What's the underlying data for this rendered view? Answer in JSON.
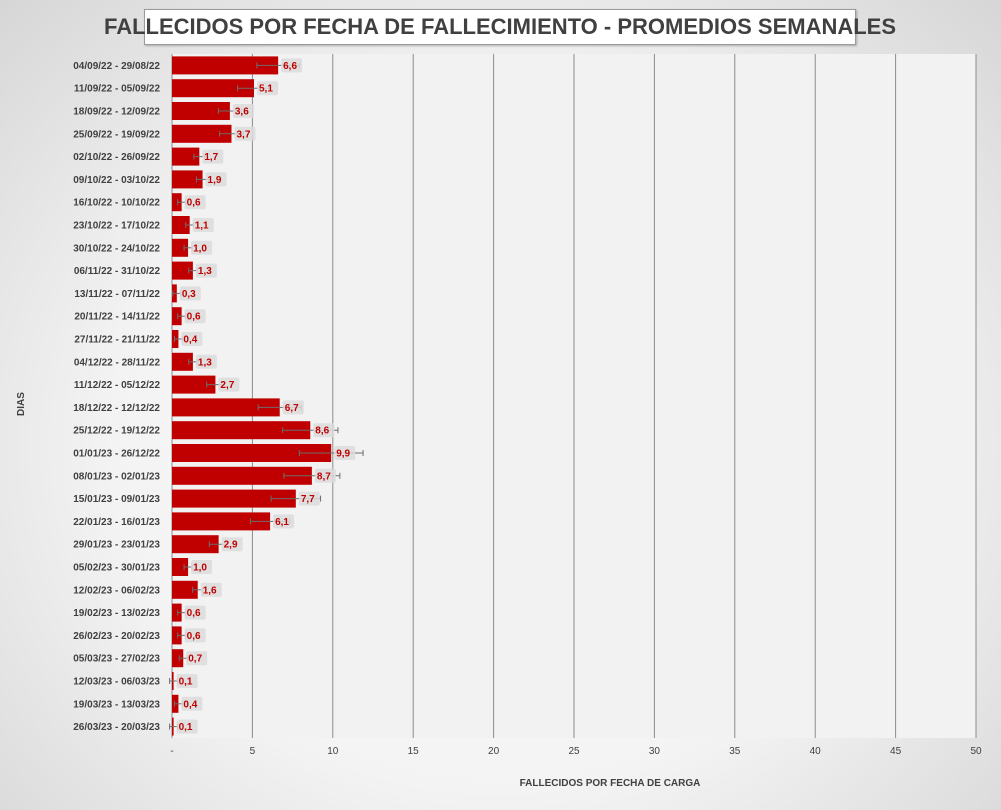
{
  "chart_data": {
    "type": "bar",
    "orientation": "horizontal",
    "title": "FALLECIDOS POR FECHA DE FALLECIMIENTO - PROMEDIOS SEMANALES",
    "xlabel": "FALLECIDOS POR FECHA DE CARGA",
    "ylabel": "DIAS",
    "xlim": [
      0,
      50
    ],
    "x_ticks": [
      "-",
      "5",
      "10",
      "15",
      "20",
      "25",
      "30",
      "35",
      "40",
      "45",
      "50"
    ],
    "grid": "vertical",
    "bar_color": "#c00000",
    "label_color": "#c00000",
    "categories": [
      "04/09/22 - 29/08/22",
      "11/09/22 - 05/09/22",
      "18/09/22 - 12/09/22",
      "25/09/22 - 19/09/22",
      "02/10/22 - 26/09/22",
      "09/10/22 - 03/10/22",
      "16/10/22 - 10/10/22",
      "23/10/22 - 17/10/22",
      "30/10/22 - 24/10/22",
      "06/11/22 - 31/10/22",
      "13/11/22 - 07/11/22",
      "20/11/22 - 14/11/22",
      "27/11/22 - 21/11/22",
      "04/12/22 - 28/11/22",
      "11/12/22 - 05/12/22",
      "18/12/22 - 12/12/22",
      "25/12/22 - 19/12/22",
      "01/01/23 - 26/12/22",
      "08/01/23 - 02/01/23",
      "15/01/23 - 09/01/23",
      "22/01/23 - 16/01/23",
      "29/01/23 - 23/01/23",
      "05/02/23 - 30/01/23",
      "12/02/23 - 06/02/23",
      "19/02/23 - 13/02/23",
      "26/02/23 - 20/02/23",
      "05/03/23 - 27/02/23",
      "12/03/23 - 06/03/23",
      "19/03/23 - 13/03/23",
      "26/03/23 - 20/03/23"
    ],
    "values": [
      6.6,
      5.1,
      3.6,
      3.7,
      1.7,
      1.9,
      0.6,
      1.1,
      1.0,
      1.3,
      0.3,
      0.6,
      0.4,
      1.3,
      2.7,
      6.7,
      8.6,
      9.9,
      8.7,
      7.7,
      6.1,
      2.9,
      1.0,
      1.6,
      0.6,
      0.6,
      0.7,
      0.1,
      0.4,
      0.1
    ],
    "value_labels": [
      "6,6",
      "5,1",
      "3,6",
      "3,7",
      "1,7",
      "1,9",
      "0,6",
      "1,1",
      "1,0",
      "1,3",
      "0,3",
      "0,6",
      "0,4",
      "1,3",
      "2,7",
      "6,7",
      "8,6",
      "9,9",
      "8,7",
      "7,7",
      "6,1",
      "2,9",
      "1,0",
      "1,6",
      "0,6",
      "0,6",
      "0,7",
      "0,1",
      "0,4",
      "0,1"
    ],
    "error_bars": true
  }
}
